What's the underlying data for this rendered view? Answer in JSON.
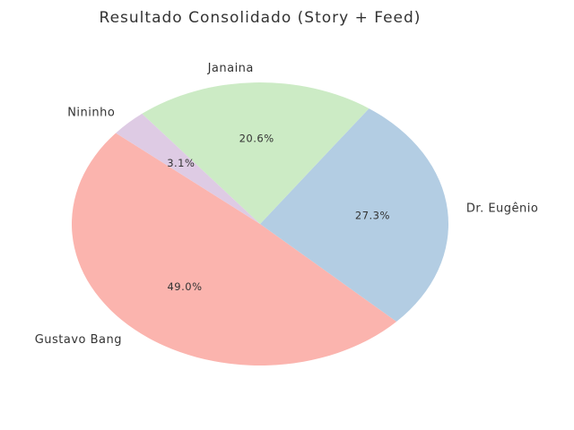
{
  "chart_data": {
    "type": "pie",
    "title": "Resultado Consolidado (Story + Feed)",
    "categories": [
      "Gustavo Bang",
      "Dr. Eugênio",
      "Janaina",
      "Nininho"
    ],
    "values": [
      49.0,
      27.3,
      20.6,
      3.1
    ],
    "value_labels": [
      "49.0%",
      "27.3%",
      "20.6%",
      "3.1%"
    ],
    "colors": [
      "#fbb4ae",
      "#b3cde3",
      "#ccebc5",
      "#decbe4"
    ],
    "startangle": 140
  }
}
